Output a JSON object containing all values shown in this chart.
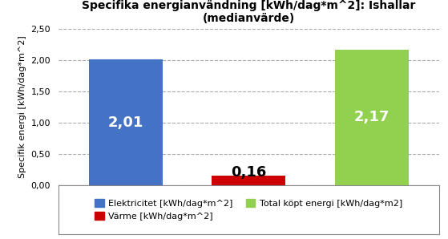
{
  "title": "Specifika energianvändning [kWh/dag*m^2]: Ishallar\n(medianvärde)",
  "ylabel": "Specifik energi [kWh/dag*m^2]",
  "values": [
    2.01,
    0.16,
    2.17
  ],
  "bar_colors": [
    "#4472C4",
    "#CC0000",
    "#92D050"
  ],
  "bar_labels": [
    "2,01",
    "0,16",
    "2,17"
  ],
  "ylim": [
    0,
    2.5
  ],
  "yticks": [
    0.0,
    0.5,
    1.0,
    1.5,
    2.0,
    2.5
  ],
  "ytick_labels": [
    "0,00",
    "0,50",
    "1,00",
    "1,50",
    "2,00",
    "2,50"
  ],
  "legend_labels": [
    "Elektricitet [kWh/dag*m^2]",
    "Värme [kWh/dag*m^2]",
    "Total köpt energi [kWh/dag*m2]"
  ],
  "legend_colors": [
    "#4472C4",
    "#CC0000",
    "#92D050"
  ],
  "background_color": "#FFFFFF",
  "grid_color": "#AAAAAA",
  "title_fontsize": 10,
  "axis_label_fontsize": 8,
  "bar_label_fontsize": 13,
  "legend_fontsize": 8,
  "bar_width": 0.6,
  "bar_positions": [
    0,
    1,
    2
  ]
}
